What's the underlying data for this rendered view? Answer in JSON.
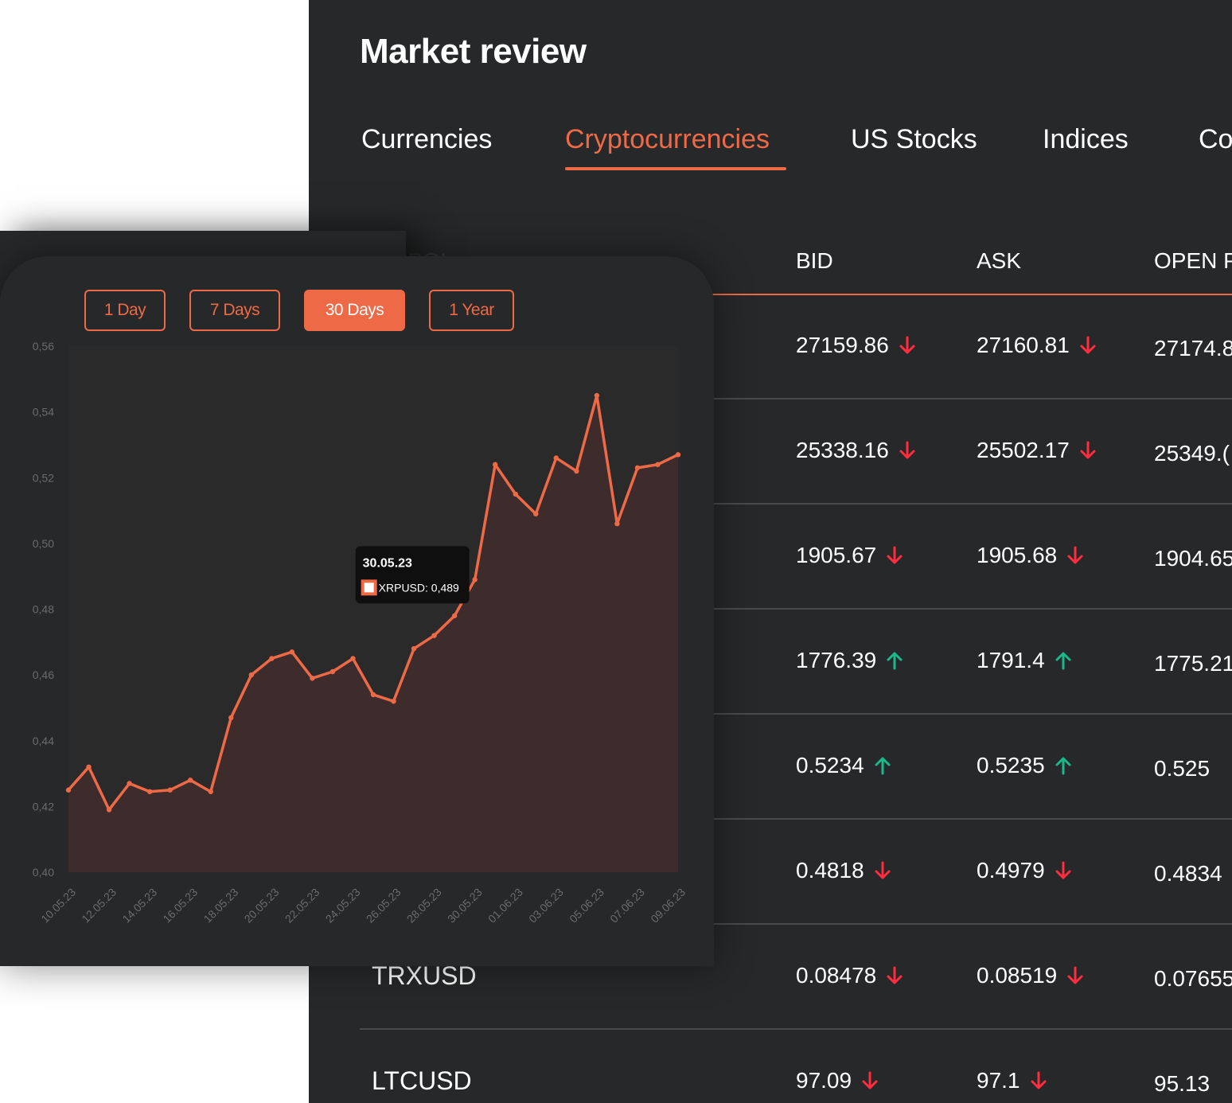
{
  "page": {
    "title": "Market review",
    "tabs": [
      {
        "label": "Currencies",
        "active": false
      },
      {
        "label": "Cryptocurrencies",
        "active": true
      },
      {
        "label": "US Stocks",
        "active": false
      },
      {
        "label": "Indices",
        "active": false
      },
      {
        "label": "Co",
        "active": false
      }
    ]
  },
  "table": {
    "headers": {
      "symbol": "SYMBOL",
      "bid": "BID",
      "ask": "ASK",
      "open": "OPEN P"
    },
    "rows": [
      {
        "symbol": "",
        "bid": "27159.86",
        "bid_dir": "down",
        "ask": "27160.81",
        "ask_dir": "down",
        "open": "27174.8"
      },
      {
        "symbol": "",
        "bid": "25338.16",
        "bid_dir": "down",
        "ask": "25502.17",
        "ask_dir": "down",
        "open": "25349.("
      },
      {
        "symbol": "",
        "bid": "1905.67",
        "bid_dir": "down",
        "ask": "1905.68",
        "ask_dir": "down",
        "open": "1904.65"
      },
      {
        "symbol": "",
        "bid": "1776.39",
        "bid_dir": "up",
        "ask": "1791.4",
        "ask_dir": "up",
        "open": "1775.21"
      },
      {
        "symbol": "",
        "bid": "0.5234",
        "bid_dir": "up",
        "ask": "0.5235",
        "ask_dir": "up",
        "open": "0.525"
      },
      {
        "symbol": "",
        "bid": "0.4818",
        "bid_dir": "down",
        "ask": "0.4979",
        "ask_dir": "down",
        "open": "0.4834"
      },
      {
        "symbol": "TRXUSD",
        "bid": "0.08478",
        "bid_dir": "down",
        "ask": "0.08519",
        "ask_dir": "down",
        "open": "0.07655"
      },
      {
        "symbol": "LTCUSD",
        "bid": "97.09",
        "bid_dir": "down",
        "ask": "97.1",
        "ask_dir": "down",
        "open": "95.13"
      }
    ]
  },
  "colors": {
    "accent": "#ee6a46",
    "up": "#19b98a",
    "down": "#ff2d3d",
    "panel": "#272829"
  },
  "icons": {
    "up": "arrow-up-icon",
    "down": "arrow-down-icon"
  },
  "chart_controls": {
    "ranges": [
      {
        "label": "1 Day",
        "active": false
      },
      {
        "label": "7 Days",
        "active": false
      },
      {
        "label": "30 Days",
        "active": true
      },
      {
        "label": "1 Year",
        "active": false
      }
    ]
  },
  "chart_data": {
    "type": "area",
    "series": [
      {
        "name": "XRPUSD",
        "values": [
          0.425,
          0.432,
          0.419,
          0.427,
          0.4245,
          0.425,
          0.428,
          0.4245,
          0.447,
          0.46,
          0.465,
          0.467,
          0.459,
          0.461,
          0.465,
          0.454,
          0.452,
          0.468,
          0.472,
          0.478,
          0.489,
          0.524,
          0.515,
          0.509,
          0.526,
          0.522,
          0.545,
          0.506,
          0.523,
          0.524,
          0.527
        ]
      }
    ],
    "x_tick_labels": [
      "10.05.23",
      "12.05.23",
      "14.05.23",
      "16.05.23",
      "18.05.23",
      "20.05.23",
      "22.05.23",
      "24.05.23",
      "26.05.23",
      "28.05.23",
      "30.05.23",
      "01.06.23",
      "03.06.23",
      "05.06.23",
      "07.06.23",
      "09.06.23"
    ],
    "y_tick_labels": [
      "0,40",
      "0,42",
      "0,44",
      "0,46",
      "0,48",
      "0,50",
      "0,52",
      "0,54",
      "0,56"
    ],
    "ylim": [
      0.4,
      0.56
    ],
    "grid": false,
    "tooltip": {
      "date": "30.05.23",
      "text": "XRPUSD: 0,489",
      "point_index": 20
    }
  }
}
